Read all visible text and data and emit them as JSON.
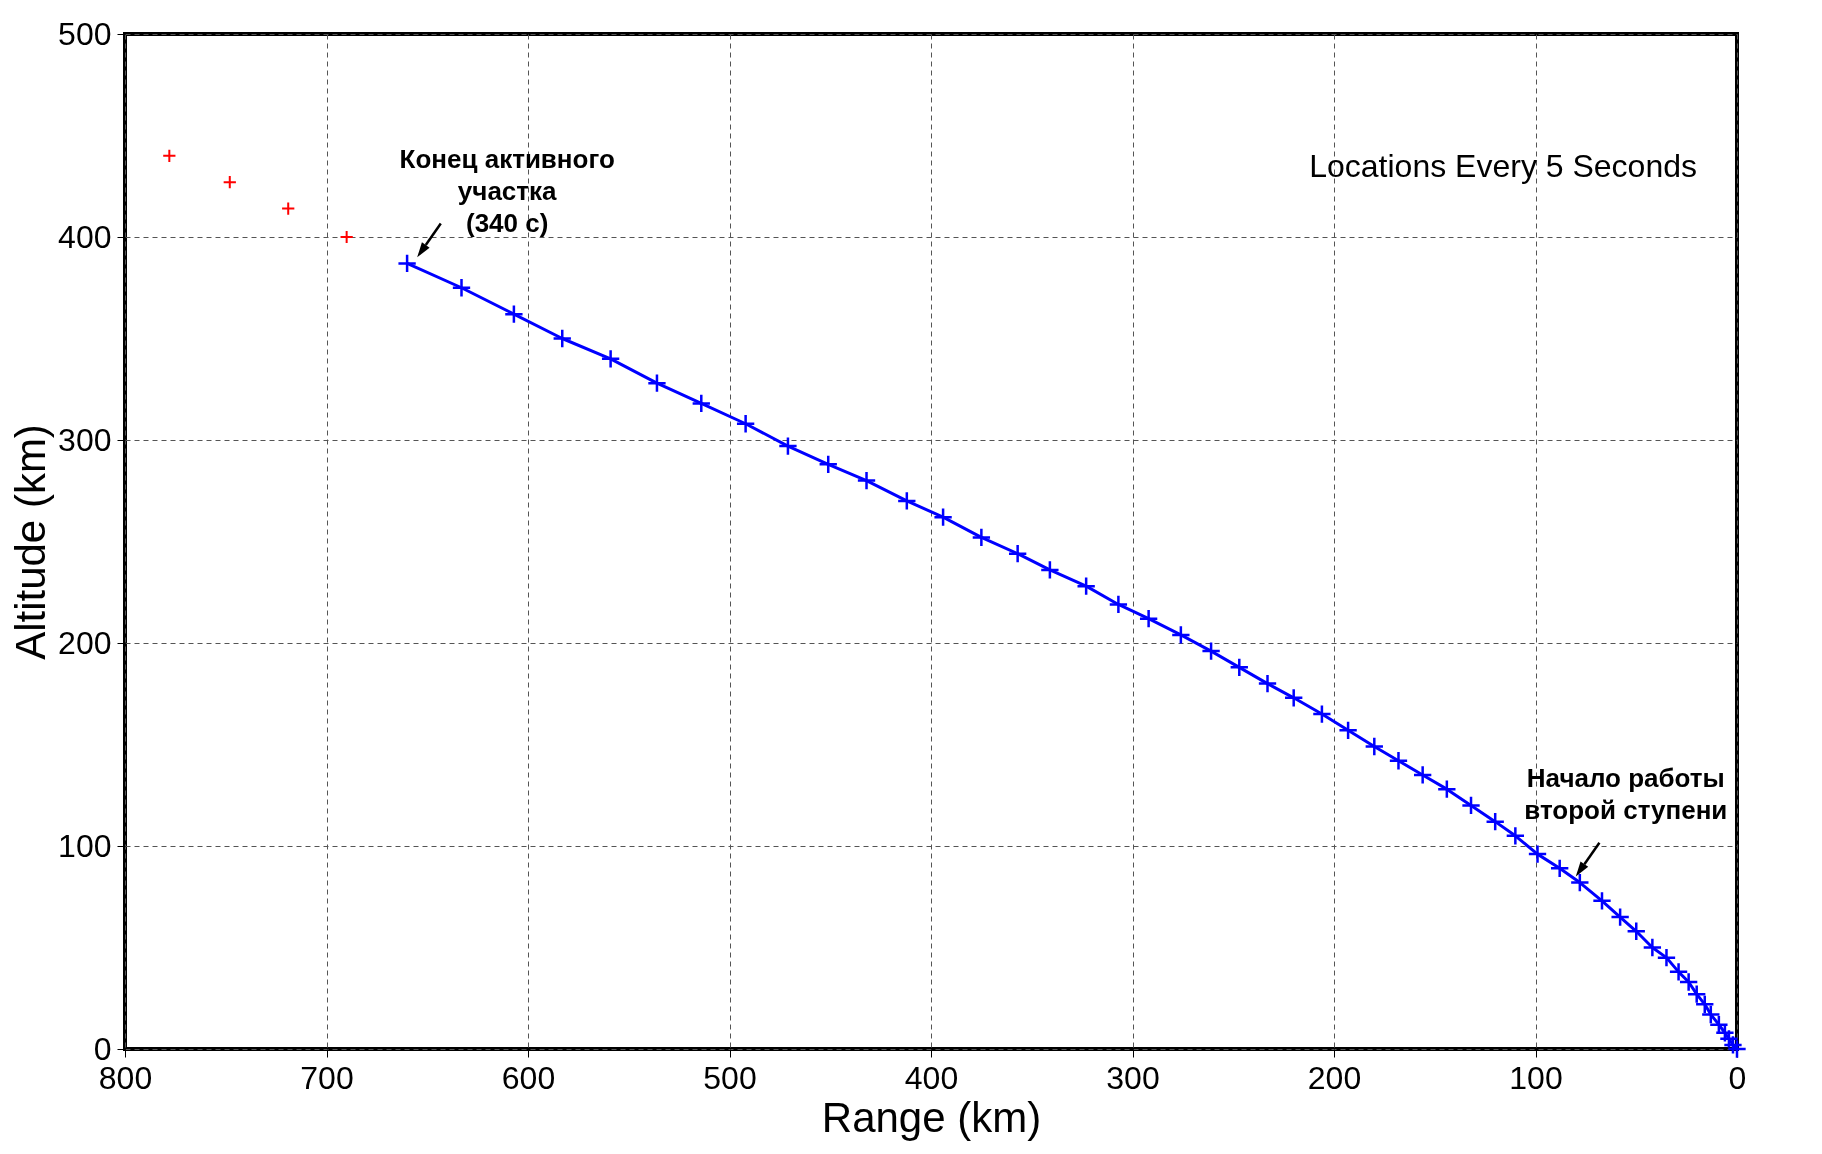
{
  "chart_data": {
    "type": "line",
    "xlabel": "Range (km)",
    "ylabel": "Altitude (km)",
    "xlim": [
      800,
      0
    ],
    "ylim": [
      0,
      500
    ],
    "xticks": [
      800,
      700,
      600,
      500,
      400,
      300,
      200,
      100,
      0
    ],
    "yticks": [
      0,
      100,
      200,
      300,
      400,
      500
    ],
    "grid": true,
    "marker": "cross",
    "line_style": "solid",
    "series": [
      {
        "color": "#0000ff",
        "x": [
          660,
          633,
          607,
          583,
          559,
          536,
          514,
          492,
          471,
          451,
          432,
          412,
          394,
          375,
          357,
          341,
          323,
          307,
          292,
          276,
          261,
          247,
          233,
          220,
          206,
          193,
          180,
          168,
          156,
          144,
          132,
          120,
          110,
          99,
          88,
          78,
          67,
          58,
          50,
          42,
          35,
          29,
          24,
          20,
          16,
          13,
          9,
          6,
          4,
          2,
          0
        ],
        "values": [
          387,
          375,
          362,
          350,
          340,
          328,
          318,
          308,
          297,
          288,
          280,
          270,
          262,
          252,
          244,
          236,
          228,
          219,
          212,
          204,
          196,
          188,
          180,
          173,
          165,
          157,
          149,
          142,
          135,
          128,
          120,
          112,
          105,
          96,
          89,
          82,
          73,
          65,
          58,
          50,
          45,
          38,
          33,
          27,
          22,
          17,
          12,
          8,
          5,
          2,
          0
        ]
      },
      {
        "type": "scatter",
        "color": "#ff0000",
        "x": [
          778,
          748,
          719,
          690
        ],
        "values": [
          440,
          427,
          414,
          400
        ]
      }
    ],
    "annotations": [
      {
        "text": "Конец активного\nучастка\n(340 с)",
        "x": 655,
        "y": 390
      },
      {
        "text": "Начало работы\nвторой ступени",
        "x": 80,
        "y": 85
      },
      "Locations Every 5 Seconds"
    ]
  }
}
